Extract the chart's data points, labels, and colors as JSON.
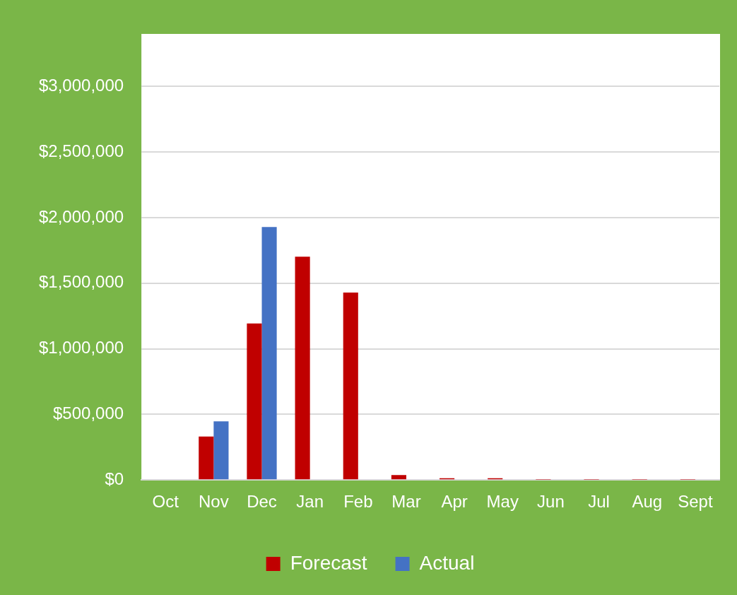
{
  "chart_data": {
    "type": "bar",
    "categories": [
      "Oct",
      "Nov",
      "Dec",
      "Jan",
      "Feb",
      "Mar",
      "Apr",
      "May",
      "Jun",
      "Jul",
      "Aug",
      "Sept"
    ],
    "series": [
      {
        "name": "Forecast",
        "color": "#c00000",
        "values": [
          0,
          331000,
          1193000,
          1702000,
          1429000,
          37000,
          13000,
          13000,
          3000,
          3000,
          3000,
          3000
        ]
      },
      {
        "name": "Actual",
        "color": "#4472c4",
        "values": [
          0,
          447000,
          1928000,
          0,
          0,
          0,
          0,
          0,
          0,
          0,
          0,
          0
        ]
      }
    ],
    "ylim": [
      0,
      3400000
    ],
    "yticks": [
      {
        "value": 0,
        "label": "$0"
      },
      {
        "value": 500000,
        "label": "$500,000"
      },
      {
        "value": 1000000,
        "label": "$1,000,000"
      },
      {
        "value": 1500000,
        "label": "$1,500,000"
      },
      {
        "value": 2000000,
        "label": "$2,000,000"
      },
      {
        "value": 2500000,
        "label": "$2,500,000"
      },
      {
        "value": 3000000,
        "label": "$3,000,000"
      }
    ],
    "grid": "y",
    "legend": "bottom"
  }
}
